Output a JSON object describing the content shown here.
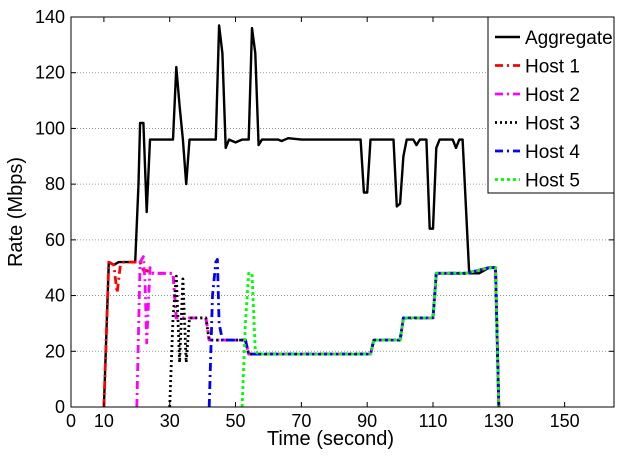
{
  "chart_data": {
    "type": "line",
    "xlabel": "Time (second)",
    "ylabel": "Rate (Mbps)",
    "xlim": [
      0,
      165
    ],
    "ylim": [
      0,
      140
    ],
    "xticks": [
      0,
      10,
      30,
      50,
      70,
      90,
      110,
      130,
      150
    ],
    "yticks": [
      0,
      20,
      40,
      60,
      80,
      100,
      120,
      140
    ],
    "grid": "horizontal",
    "legend_position": "top-right",
    "series": [
      {
        "name": "Aggregate",
        "color": "#000000",
        "dash": "solid",
        "points": [
          [
            10,
            0
          ],
          [
            11.5,
            52
          ],
          [
            13,
            51
          ],
          [
            14.5,
            52
          ],
          [
            18,
            52
          ],
          [
            19.5,
            52
          ],
          [
            20.5,
            80
          ],
          [
            21,
            102
          ],
          [
            22,
            102
          ],
          [
            23,
            70
          ],
          [
            24,
            96
          ],
          [
            28,
            96
          ],
          [
            30,
            96
          ],
          [
            31,
            96
          ],
          [
            32,
            122
          ],
          [
            33,
            108
          ],
          [
            34,
            96
          ],
          [
            35,
            80
          ],
          [
            36,
            96
          ],
          [
            40,
            96
          ],
          [
            43,
            96
          ],
          [
            44,
            96
          ],
          [
            45,
            137
          ],
          [
            46,
            127
          ],
          [
            47,
            93
          ],
          [
            48,
            96
          ],
          [
            50,
            95
          ],
          [
            52,
            96
          ],
          [
            54,
            96
          ],
          [
            55,
            136
          ],
          [
            56,
            127
          ],
          [
            57,
            94
          ],
          [
            58,
            96
          ],
          [
            63,
            96
          ],
          [
            64,
            95.5
          ],
          [
            66,
            96.5
          ],
          [
            70,
            96
          ],
          [
            80,
            96
          ],
          [
            88,
            96
          ],
          [
            89,
            77
          ],
          [
            90,
            77
          ],
          [
            91,
            96
          ],
          [
            96,
            96
          ],
          [
            98,
            96
          ],
          [
            99,
            72
          ],
          [
            100,
            73
          ],
          [
            101,
            90
          ],
          [
            102,
            96
          ],
          [
            103,
            96
          ],
          [
            104,
            96
          ],
          [
            105,
            94
          ],
          [
            106,
            96
          ],
          [
            108,
            96
          ],
          [
            109,
            64
          ],
          [
            110,
            64
          ],
          [
            111,
            93
          ],
          [
            112,
            96
          ],
          [
            116,
            96
          ],
          [
            117,
            93
          ],
          [
            118,
            96
          ],
          [
            119,
            96
          ],
          [
            121,
            48
          ],
          [
            124,
            48
          ],
          [
            127,
            50
          ],
          [
            129,
            50
          ],
          [
            130,
            0
          ]
        ]
      },
      {
        "name": "Host 1",
        "color": "#ff0000",
        "dash": "8 4 2 4",
        "points": [
          [
            10,
            0
          ],
          [
            11.5,
            52
          ],
          [
            13,
            51
          ],
          [
            14,
            41
          ],
          [
            15,
            51
          ],
          [
            16,
            52
          ],
          [
            21,
            52
          ],
          [
            22,
            49
          ],
          [
            23,
            49
          ],
          [
            24,
            48
          ],
          [
            31,
            48
          ],
          [
            32,
            32
          ],
          [
            40,
            32
          ],
          [
            41,
            32
          ],
          [
            42,
            24
          ],
          [
            43,
            24
          ],
          [
            47,
            24
          ],
          [
            48,
            24
          ],
          [
            52,
            24
          ],
          [
            53,
            24
          ],
          [
            54,
            19
          ],
          [
            60,
            19
          ],
          [
            91,
            19
          ],
          [
            92,
            24
          ],
          [
            100,
            24
          ],
          [
            101,
            32
          ],
          [
            110,
            32
          ],
          [
            111,
            48
          ],
          [
            120,
            48
          ],
          [
            127,
            50
          ],
          [
            129,
            50
          ],
          [
            130,
            0
          ]
        ]
      },
      {
        "name": "Host 2",
        "color": "#ff00ff",
        "dash": "8 4 2 4",
        "points": [
          [
            20,
            0
          ],
          [
            21,
            52
          ],
          [
            22,
            54
          ],
          [
            22.5,
            45
          ],
          [
            23,
            23
          ],
          [
            24,
            50
          ],
          [
            25,
            48
          ],
          [
            30,
            48
          ],
          [
            31,
            48
          ],
          [
            32,
            32
          ],
          [
            41,
            32
          ],
          [
            42,
            24
          ],
          [
            53,
            24
          ],
          [
            54,
            19
          ],
          [
            91,
            19
          ],
          [
            92,
            24
          ],
          [
            100,
            24
          ],
          [
            101,
            32
          ],
          [
            110,
            32
          ],
          [
            111,
            48
          ],
          [
            120,
            48
          ],
          [
            127,
            50
          ],
          [
            129,
            50
          ],
          [
            130,
            0
          ]
        ]
      },
      {
        "name": "Host 3",
        "color": "#000000",
        "dash": "2 3",
        "points": [
          [
            30,
            0
          ],
          [
            31,
            32
          ],
          [
            32,
            47
          ],
          [
            33,
            16
          ],
          [
            34,
            46
          ],
          [
            35,
            16
          ],
          [
            36,
            32
          ],
          [
            41,
            32
          ],
          [
            42,
            24
          ],
          [
            53,
            24
          ],
          [
            54,
            19
          ],
          [
            91,
            19
          ],
          [
            92,
            24
          ],
          [
            100,
            24
          ],
          [
            101,
            32
          ],
          [
            110,
            32
          ],
          [
            111,
            48
          ],
          [
            120,
            48
          ],
          [
            127,
            50
          ],
          [
            129,
            50
          ],
          [
            130,
            0
          ]
        ]
      },
      {
        "name": "Host 4",
        "color": "#0000ff",
        "dash": "8 4 2 4",
        "points": [
          [
            42,
            0
          ],
          [
            43,
            40
          ],
          [
            44,
            52
          ],
          [
            44.5,
            53
          ],
          [
            45,
            30
          ],
          [
            46,
            24
          ],
          [
            53,
            24
          ],
          [
            54,
            19
          ],
          [
            91,
            19
          ],
          [
            92,
            24
          ],
          [
            100,
            24
          ],
          [
            101,
            32
          ],
          [
            110,
            32
          ],
          [
            111,
            48
          ],
          [
            120,
            48
          ],
          [
            127,
            50
          ],
          [
            129,
            50
          ],
          [
            130,
            0
          ]
        ]
      },
      {
        "name": "Host 5",
        "color": "#00ff00",
        "dash": "3 3",
        "points": [
          [
            52,
            0
          ],
          [
            53,
            30
          ],
          [
            54,
            48
          ],
          [
            55,
            48
          ],
          [
            56,
            20
          ],
          [
            57,
            19
          ],
          [
            91,
            19
          ],
          [
            92,
            24
          ],
          [
            100,
            24
          ],
          [
            101,
            32
          ],
          [
            110,
            32
          ],
          [
            111,
            48
          ],
          [
            120,
            48
          ],
          [
            127,
            50
          ],
          [
            129,
            50
          ],
          [
            130,
            0
          ]
        ]
      }
    ]
  }
}
